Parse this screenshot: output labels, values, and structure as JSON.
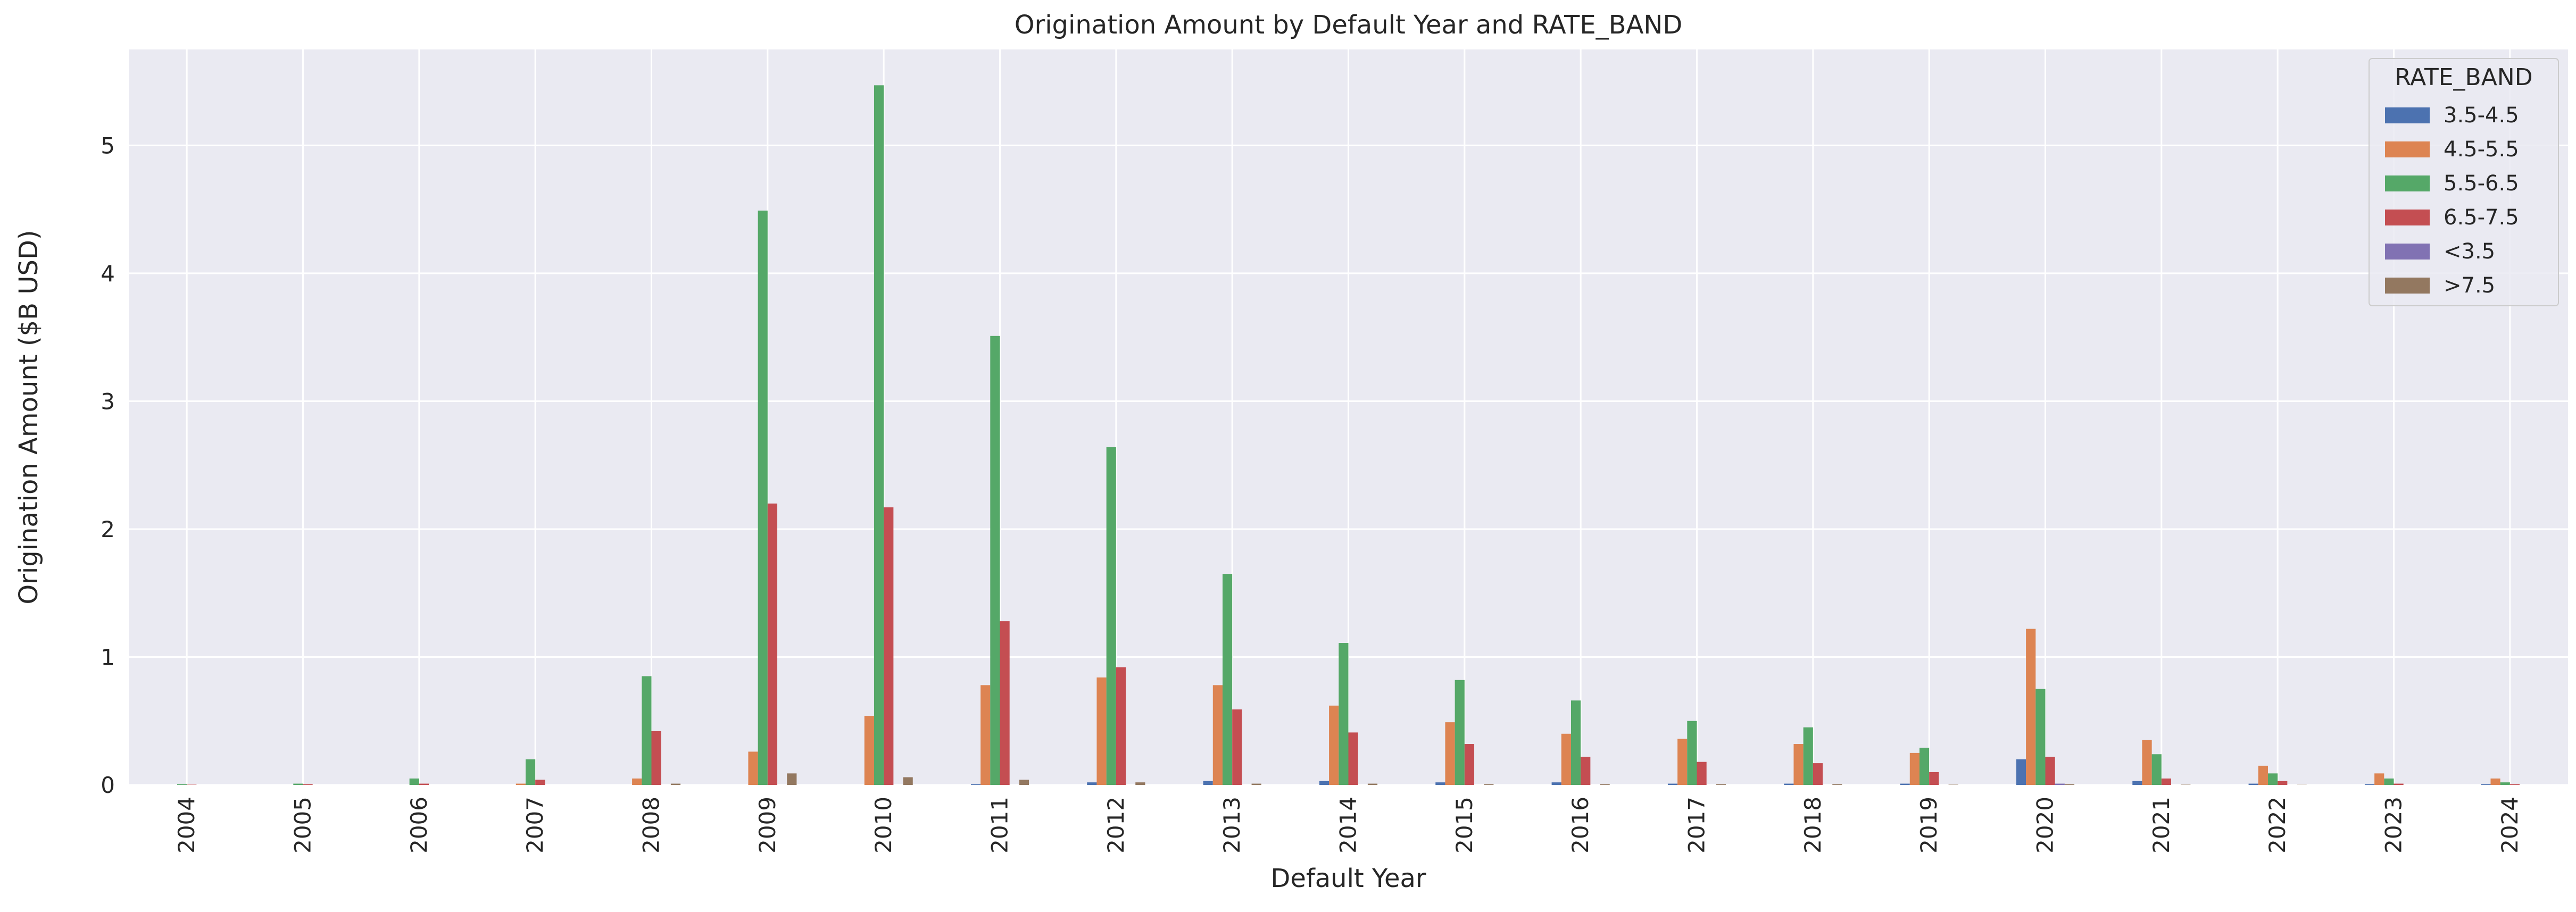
{
  "chart_data": {
    "type": "bar",
    "title": "Origination Amount by Default Year and RATE_BAND",
    "xlabel": "Default Year",
    "ylabel": "Origination Amount ($B USD)",
    "ylim": [
      0,
      5.75
    ],
    "yticks": [
      0,
      1,
      2,
      3,
      4,
      5
    ],
    "grid": true,
    "legend": {
      "title": "RATE_BAND",
      "position": "top-right"
    },
    "categories": [
      "2004",
      "2005",
      "2006",
      "2007",
      "2008",
      "2009",
      "2010",
      "2011",
      "2012",
      "2013",
      "2014",
      "2015",
      "2016",
      "2017",
      "2018",
      "2019",
      "2020",
      "2021",
      "2022",
      "2023",
      "2024"
    ],
    "series": [
      {
        "name": "3.5-4.5",
        "color": "#4c72b0",
        "values": [
          0,
          0,
          0,
          0,
          0,
          0,
          0,
          0.005,
          0.02,
          0.03,
          0.03,
          0.02,
          0.02,
          0.01,
          0.01,
          0.01,
          0.2,
          0.03,
          0.01,
          0.005,
          0.005
        ]
      },
      {
        "name": "4.5-5.5",
        "color": "#dd8452",
        "values": [
          0,
          0,
          0,
          0.01,
          0.05,
          0.26,
          0.54,
          0.78,
          0.84,
          0.78,
          0.62,
          0.49,
          0.4,
          0.36,
          0.32,
          0.25,
          1.22,
          0.35,
          0.15,
          0.09,
          0.05
        ]
      },
      {
        "name": "5.5-6.5",
        "color": "#55a868",
        "values": [
          0.005,
          0.01,
          0.05,
          0.2,
          0.85,
          4.49,
          5.47,
          3.51,
          2.64,
          1.65,
          1.11,
          0.82,
          0.66,
          0.5,
          0.45,
          0.29,
          0.75,
          0.24,
          0.09,
          0.05,
          0.02
        ]
      },
      {
        "name": "6.5-7.5",
        "color": "#c44e52",
        "values": [
          0.002,
          0.005,
          0.01,
          0.04,
          0.42,
          2.2,
          2.17,
          1.28,
          0.92,
          0.59,
          0.41,
          0.32,
          0.22,
          0.18,
          0.17,
          0.1,
          0.22,
          0.05,
          0.03,
          0.01,
          0.005
        ]
      },
      {
        "name": "<3.5",
        "color": "#8172b3",
        "values": [
          0,
          0,
          0,
          0,
          0,
          0,
          0,
          0,
          0,
          0,
          0,
          0,
          0,
          0,
          0,
          0,
          0.01,
          0,
          0,
          0,
          0
        ]
      },
      {
        "name": ">7.5",
        "color": "#937860",
        "values": [
          0,
          0,
          0,
          0,
          0.01,
          0.09,
          0.06,
          0.04,
          0.02,
          0.01,
          0.01,
          0.005,
          0.005,
          0.005,
          0.005,
          0.002,
          0.005,
          0.002,
          0.001,
          0,
          0
        ]
      }
    ]
  }
}
